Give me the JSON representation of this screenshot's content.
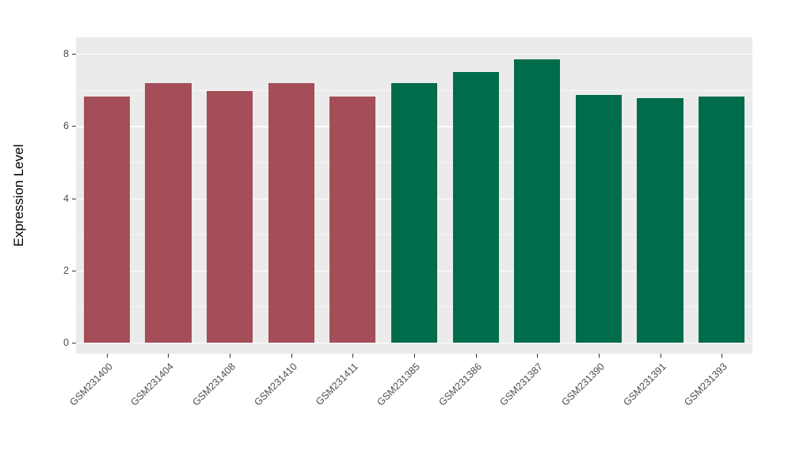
{
  "chart_data": {
    "type": "bar",
    "title": "",
    "xlabel": "",
    "ylabel": "Expression Level",
    "ylim": [
      0,
      8
    ],
    "yticks_major": [
      0,
      2,
      4,
      6,
      8
    ],
    "yticks_minor": [
      1,
      3,
      5,
      7
    ],
    "grid": "on",
    "legend": "none",
    "panel_background": "#EBEBEB",
    "gridline_color": "#FFFFFF",
    "categories": [
      "GSM231400",
      "GSM231404",
      "GSM231408",
      "GSM231410",
      "GSM231411",
      "GSM231385",
      "GSM231386",
      "GSM231387",
      "GSM231390",
      "GSM231391",
      "GSM231393"
    ],
    "values": [
      6.82,
      7.18,
      6.98,
      7.18,
      6.82,
      7.18,
      7.5,
      7.85,
      6.87,
      6.78,
      6.82
    ],
    "bar_colors": [
      "#A34E58",
      "#A34E58",
      "#A34E58",
      "#A34E58",
      "#A34E58",
      "#006C4B",
      "#006C4B",
      "#006C4B",
      "#006C4B",
      "#006C4B",
      "#006C4B"
    ],
    "groups": [
      {
        "name": "group-red",
        "color": "#A34E58",
        "members": [
          "GSM231400",
          "GSM231404",
          "GSM231408",
          "GSM231410",
          "GSM231411"
        ]
      },
      {
        "name": "group-green",
        "color": "#006C4B",
        "members": [
          "GSM231385",
          "GSM231386",
          "GSM231387",
          "GSM231390",
          "GSM231391",
          "GSM231393"
        ]
      }
    ]
  }
}
